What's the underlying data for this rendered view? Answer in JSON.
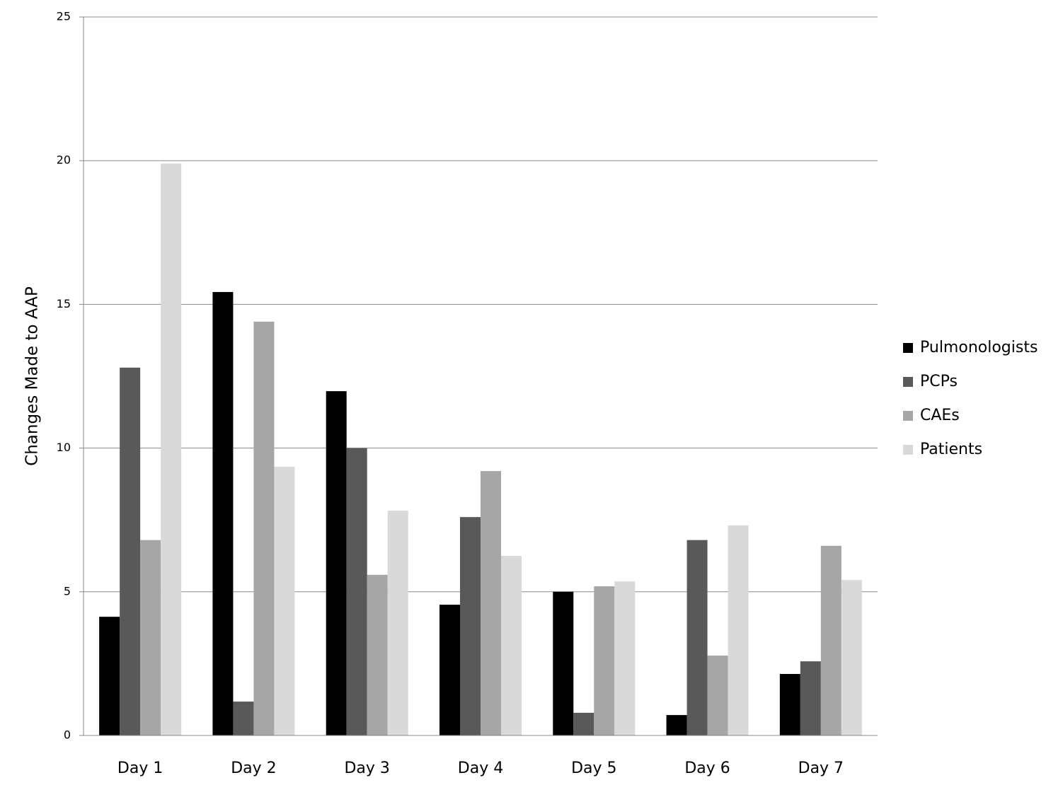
{
  "chart_data": {
    "type": "bar",
    "y_label": "Changes Made to AAP",
    "categories": [
      "Day 1",
      "Day 2",
      "Day 3",
      "Day 4",
      "Day 5",
      "Day 6",
      "Day 7"
    ],
    "series": [
      {
        "name": "Pulmonologists",
        "color": "#000000",
        "values": [
          4.13,
          15.43,
          11.98,
          4.55,
          5.0,
          0.71,
          2.14
        ]
      },
      {
        "name": "PCPs",
        "color": "#595959",
        "values": [
          12.8,
          1.18,
          10.0,
          7.6,
          0.79,
          6.8,
          2.58
        ]
      },
      {
        "name": "CAEs",
        "color": "#a6a6a6",
        "values": [
          6.8,
          14.4,
          5.59,
          9.2,
          5.19,
          2.78,
          6.6
        ]
      },
      {
        "name": "Patients",
        "color": "#d9d9d9",
        "values": [
          19.9,
          9.35,
          7.82,
          6.25,
          5.36,
          7.31,
          5.41
        ]
      }
    ],
    "ylim": [
      0,
      25
    ],
    "yticks": [
      0,
      5,
      10,
      15,
      20,
      25
    ],
    "grid": true,
    "legend": "right"
  }
}
